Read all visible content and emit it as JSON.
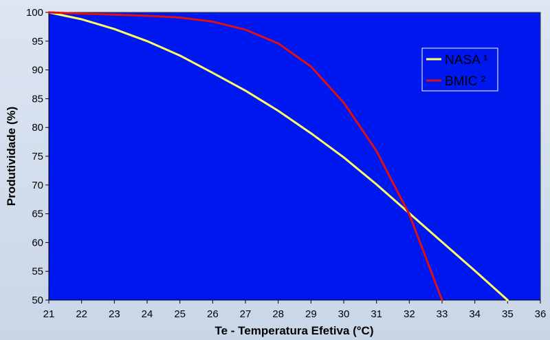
{
  "chart_data": {
    "type": "line",
    "xlabel": "Te - Temperatura Efetiva (°C)",
    "ylabel": "Produtividade (%)",
    "xlim": [
      21,
      36
    ],
    "ylim": [
      50,
      100
    ],
    "x_ticks": [
      21,
      22,
      23,
      24,
      25,
      26,
      27,
      28,
      29,
      30,
      31,
      32,
      33,
      34,
      35,
      36
    ],
    "y_ticks": [
      50,
      55,
      60,
      65,
      70,
      75,
      80,
      85,
      90,
      95,
      100
    ],
    "grid": false,
    "legend_position": "top-right",
    "plot_background": "#0018f0",
    "series": [
      {
        "name": "NASA ¹",
        "color": "#ffff66",
        "x": [
          21,
          22,
          23,
          24,
          25,
          26,
          27,
          28,
          29,
          30,
          31,
          32,
          33,
          34,
          35
        ],
        "y": [
          100,
          98.8,
          97.1,
          95,
          92.5,
          89.5,
          86.4,
          82.9,
          79,
          74.8,
          70.1,
          65.1,
          60.1,
          55.1,
          50
        ]
      },
      {
        "name": "BMIC ²",
        "color": "#dd1111",
        "x": [
          21,
          22,
          23,
          24,
          25,
          26,
          27,
          28,
          29,
          30,
          31,
          32,
          33
        ],
        "y": [
          100,
          99.8,
          99.6,
          99.4,
          99.1,
          98.4,
          97,
          94.6,
          90.6,
          84.3,
          75.9,
          64.9,
          50
        ]
      }
    ]
  }
}
